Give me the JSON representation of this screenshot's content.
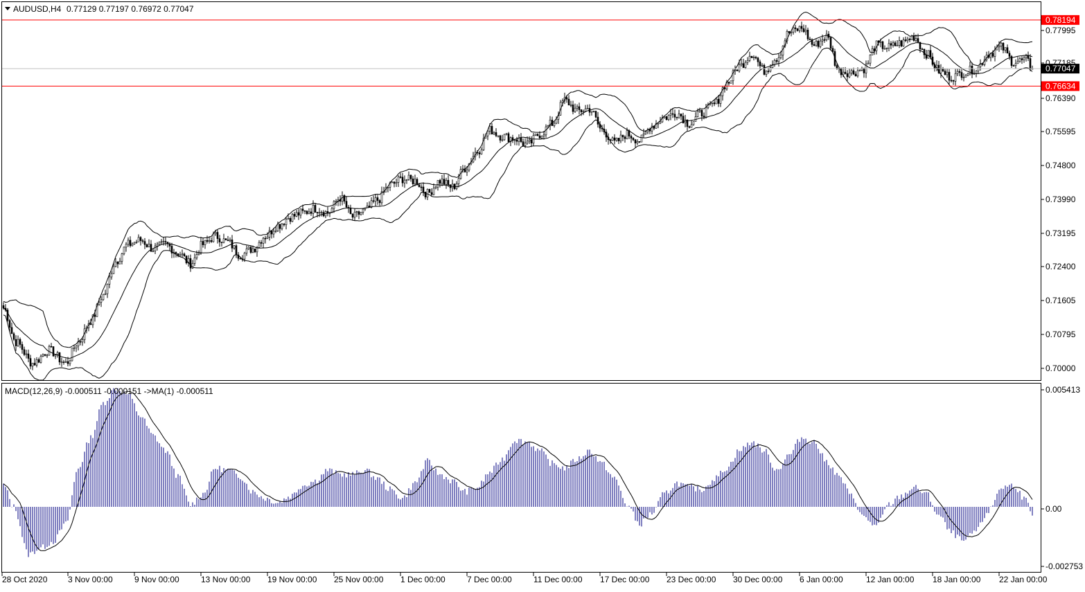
{
  "header": {
    "symbol": "AUDUSD,H4",
    "ohlc": "0.77129 0.77197 0.76972 0.77047"
  },
  "indicator_header": {
    "text": "MACD(12,26,9) -0.000511 -0.000151  ->MA(1) -0.000511"
  },
  "price_axis": {
    "ticks": [
      "0.77995",
      "0.77185",
      "0.76390",
      "0.75595",
      "0.74800",
      "0.73990",
      "0.73195",
      "0.72400",
      "0.71605",
      "0.70795",
      "0.70000"
    ],
    "current_price_label": "0.77047",
    "resistance_label": "0.78194",
    "support_label": "0.76634"
  },
  "macd_axis": {
    "ticks": [
      "0.005413",
      "0.00",
      "-0.002753"
    ]
  },
  "time_axis": {
    "labels": [
      "28 Oct 2020",
      "3 Nov 00:00",
      "9 Nov 00:00",
      "13 Nov 00:00",
      "19 Nov 00:00",
      "25 Nov 00:00",
      "1 Dec 00:00",
      "7 Dec 00:00",
      "11 Dec 00:00",
      "17 Dec 00:00",
      "23 Dec 00:00",
      "30 Dec 00:00",
      "6 Jan 00:00",
      "12 Jan 00:00",
      "18 Jan 00:00",
      "22 Jan 00:00"
    ]
  },
  "colors": {
    "background": "#ffffff",
    "candles": "#000000",
    "level_line": "#ff0000",
    "current_price_line": "#c0c0c0",
    "macd_histogram": "#000080",
    "signal_line": "#000000"
  },
  "chart_data": {
    "type": "candlestick",
    "symbol": "AUDUSD",
    "timeframe": "H4",
    "y_range": [
      0.697,
      0.786
    ],
    "price_anchors": [
      [
        0,
        0.714
      ],
      [
        6,
        0.706
      ],
      [
        14,
        0.701
      ],
      [
        22,
        0.704
      ],
      [
        30,
        0.701
      ],
      [
        36,
        0.706
      ],
      [
        42,
        0.711
      ],
      [
        48,
        0.717
      ],
      [
        54,
        0.725
      ],
      [
        60,
        0.729
      ],
      [
        66,
        0.73
      ],
      [
        72,
        0.728
      ],
      [
        78,
        0.729
      ],
      [
        84,
        0.727
      ],
      [
        90,
        0.7245
      ],
      [
        96,
        0.729
      ],
      [
        102,
        0.731
      ],
      [
        108,
        0.7295
      ],
      [
        114,
        0.7265
      ],
      [
        120,
        0.728
      ],
      [
        126,
        0.731
      ],
      [
        132,
        0.7335
      ],
      [
        138,
        0.7355
      ],
      [
        144,
        0.7365
      ],
      [
        150,
        0.7375
      ],
      [
        156,
        0.7365
      ],
      [
        162,
        0.74
      ],
      [
        168,
        0.7355
      ],
      [
        174,
        0.737
      ],
      [
        180,
        0.7395
      ],
      [
        186,
        0.743
      ],
      [
        192,
        0.7445
      ],
      [
        198,
        0.744
      ],
      [
        204,
        0.741
      ],
      [
        210,
        0.744
      ],
      [
        216,
        0.7425
      ],
      [
        222,
        0.747
      ],
      [
        228,
        0.751
      ],
      [
        234,
        0.756
      ],
      [
        240,
        0.7545
      ],
      [
        246,
        0.754
      ],
      [
        252,
        0.7525
      ],
      [
        258,
        0.755
      ],
      [
        264,
        0.7575
      ],
      [
        270,
        0.763
      ],
      [
        276,
        0.7605
      ],
      [
        282,
        0.761
      ],
      [
        288,
        0.756
      ],
      [
        294,
        0.753
      ],
      [
        300,
        0.755
      ],
      [
        306,
        0.7535
      ],
      [
        312,
        0.757
      ],
      [
        318,
        0.759
      ],
      [
        324,
        0.76
      ],
      [
        330,
        0.7575
      ],
      [
        336,
        0.76
      ],
      [
        342,
        0.762
      ],
      [
        348,
        0.767
      ],
      [
        354,
        0.771
      ],
      [
        360,
        0.774
      ],
      [
        366,
        0.77
      ],
      [
        372,
        0.773
      ],
      [
        378,
        0.779
      ],
      [
        384,
        0.78
      ],
      [
        390,
        0.776
      ],
      [
        396,
        0.778
      ],
      [
        402,
        0.77
      ],
      [
        408,
        0.7695
      ],
      [
        414,
        0.7705
      ],
      [
        420,
        0.776
      ],
      [
        426,
        0.7755
      ],
      [
        432,
        0.7765
      ],
      [
        438,
        0.778
      ],
      [
        444,
        0.774
      ],
      [
        450,
        0.77
      ],
      [
        456,
        0.7685
      ],
      [
        462,
        0.7695
      ],
      [
        468,
        0.7705
      ],
      [
        474,
        0.774
      ],
      [
        480,
        0.7755
      ],
      [
        486,
        0.772
      ],
      [
        492,
        0.7725
      ],
      [
        495,
        0.7705
      ]
    ],
    "support": 0.76634,
    "resistance": 0.78194,
    "current_price": 0.77047,
    "macd": {
      "y_range": [
        -0.002753,
        0.005413
      ],
      "anchors": [
        [
          0,
          0.001
        ],
        [
          5,
          0.0
        ],
        [
          12,
          -0.0022
        ],
        [
          18,
          -0.0019
        ],
        [
          24,
          -0.0016
        ],
        [
          30,
          -0.0008
        ],
        [
          36,
          0.0018
        ],
        [
          42,
          0.0032
        ],
        [
          48,
          0.0048
        ],
        [
          54,
          0.0055
        ],
        [
          60,
          0.0052
        ],
        [
          66,
          0.0042
        ],
        [
          72,
          0.0033
        ],
        [
          78,
          0.0026
        ],
        [
          84,
          0.0014
        ],
        [
          90,
          0.0001
        ],
        [
          96,
          0.0006
        ],
        [
          102,
          0.0018
        ],
        [
          108,
          0.0017
        ],
        [
          114,
          0.0014
        ],
        [
          120,
          0.0007
        ],
        [
          126,
          0.0004
        ],
        [
          132,
          0.0002
        ],
        [
          138,
          0.0005
        ],
        [
          144,
          0.001
        ],
        [
          150,
          0.0012
        ],
        [
          156,
          0.0017
        ],
        [
          162,
          0.0015
        ],
        [
          168,
          0.0015
        ],
        [
          174,
          0.0017
        ],
        [
          180,
          0.0013
        ],
        [
          186,
          0.0008
        ],
        [
          192,
          0.0004
        ],
        [
          198,
          0.0011
        ],
        [
          204,
          0.0021
        ],
        [
          210,
          0.0015
        ],
        [
          216,
          0.0012
        ],
        [
          222,
          0.0007
        ],
        [
          228,
          0.0009
        ],
        [
          234,
          0.0016
        ],
        [
          240,
          0.0022
        ],
        [
          246,
          0.0031
        ],
        [
          252,
          0.003
        ],
        [
          258,
          0.0026
        ],
        [
          264,
          0.002
        ],
        [
          270,
          0.0018
        ],
        [
          276,
          0.0022
        ],
        [
          282,
          0.0026
        ],
        [
          288,
          0.002
        ],
        [
          294,
          0.0013
        ],
        [
          300,
          0.0001
        ],
        [
          306,
          -0.0008
        ],
        [
          312,
          -0.0003
        ],
        [
          318,
          0.0006
        ],
        [
          324,
          0.0011
        ],
        [
          330,
          0.0009
        ],
        [
          336,
          0.0008
        ],
        [
          342,
          0.0013
        ],
        [
          348,
          0.0018
        ],
        [
          354,
          0.0026
        ],
        [
          360,
          0.003
        ],
        [
          366,
          0.0026
        ],
        [
          372,
          0.0017
        ],
        [
          378,
          0.0024
        ],
        [
          384,
          0.0032
        ],
        [
          390,
          0.003
        ],
        [
          396,
          0.0021
        ],
        [
          402,
          0.0014
        ],
        [
          408,
          0.0005
        ],
        [
          414,
          -0.0005
        ],
        [
          420,
          -0.0009
        ],
        [
          426,
          0.0001
        ],
        [
          432,
          0.0005
        ],
        [
          438,
          0.0009
        ],
        [
          444,
          0.0006
        ],
        [
          450,
          -0.0004
        ],
        [
          456,
          -0.0012
        ],
        [
          462,
          -0.0016
        ],
        [
          468,
          -0.0011
        ],
        [
          474,
          -0.0002
        ],
        [
          480,
          0.0009
        ],
        [
          486,
          0.001
        ],
        [
          492,
          0.0003
        ],
        [
          495,
          -0.0005
        ]
      ]
    }
  }
}
